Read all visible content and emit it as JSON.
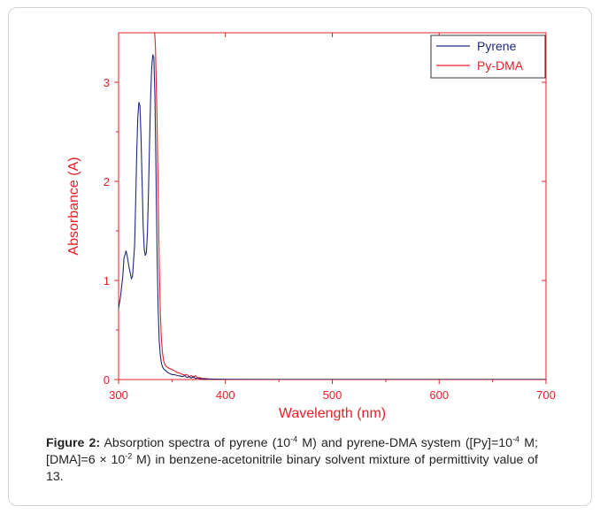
{
  "chart_data": {
    "type": "line",
    "xlabel": "Wavelength (nm)",
    "ylabel": "Absorbance (A)",
    "xlim": [
      300,
      700
    ],
    "ylim": [
      0,
      3.5
    ],
    "xticks": [
      "300",
      "400",
      "500",
      "600",
      "700"
    ],
    "yticks": [
      "0",
      "1",
      "2",
      "3"
    ],
    "grid": false,
    "legend": "top-right",
    "axis_color": "#e8202a",
    "series": [
      {
        "name": "Pyrene",
        "color": "#1c2a7a",
        "x": [
          300,
          302,
          304,
          305,
          307,
          308,
          310,
          312,
          313,
          315,
          316,
          317,
          318,
          319,
          320,
          321,
          322,
          323,
          324,
          325,
          326,
          327,
          328,
          329,
          330,
          331,
          332,
          333,
          334,
          335,
          336,
          337,
          338,
          339,
          340,
          341,
          342,
          343,
          344,
          345,
          346,
          348,
          350,
          352,
          355,
          358,
          360,
          362,
          364,
          366,
          368,
          370,
          372,
          374,
          376,
          378,
          380,
          385,
          390,
          400,
          450,
          500,
          550,
          600,
          650,
          700
        ],
        "y": [
          0.72,
          0.85,
          1.05,
          1.22,
          1.3,
          1.25,
          1.12,
          1.02,
          1.04,
          1.35,
          1.8,
          2.3,
          2.65,
          2.8,
          2.76,
          2.45,
          2.0,
          1.55,
          1.32,
          1.25,
          1.28,
          1.48,
          1.9,
          2.4,
          2.85,
          3.15,
          3.28,
          3.25,
          2.85,
          2.1,
          1.3,
          0.72,
          0.4,
          0.25,
          0.17,
          0.13,
          0.11,
          0.1,
          0.09,
          0.08,
          0.07,
          0.06,
          0.05,
          0.05,
          0.04,
          0.035,
          0.03,
          0.04,
          0.02,
          0.03,
          0.015,
          0.03,
          0.01,
          0.015,
          0.008,
          0.01,
          0.005,
          0.004,
          0.003,
          0.002,
          0.001,
          0.001,
          0.001,
          0.001,
          0.001,
          0.001
        ]
      },
      {
        "name": "Py-DMA",
        "color": "#e8202a",
        "x": [
          333.8,
          334.5,
          335,
          336,
          337,
          338,
          339,
          340,
          341,
          342,
          343,
          344,
          345,
          346,
          348,
          350,
          352,
          355,
          358,
          360,
          362,
          364,
          366,
          368,
          370,
          372,
          374,
          376,
          378,
          380,
          385,
          390,
          395,
          400,
          450,
          500,
          550,
          600,
          650,
          700
        ],
        "y": [
          3.5,
          3.35,
          3.1,
          2.6,
          1.9,
          1.2,
          0.7,
          0.42,
          0.28,
          0.2,
          0.16,
          0.14,
          0.13,
          0.12,
          0.11,
          0.1,
          0.09,
          0.07,
          0.06,
          0.05,
          0.045,
          0.05,
          0.03,
          0.04,
          0.02,
          0.04,
          0.015,
          0.02,
          0.01,
          0.012,
          0.006,
          0.004,
          0.003,
          0.002,
          0.001,
          0.001,
          0.001,
          0.001,
          0.001,
          0.001
        ]
      }
    ]
  },
  "caption": {
    "label": "Figure 2:",
    "text": "Absorption spectra of pyrene (10-4 M) and pyrene-DMA system ([Py]=10-4 M; [DMA]=6 × 10-2 M) in benzene-acetonitrile binary solvent mixture of permittivity value of 13."
  }
}
